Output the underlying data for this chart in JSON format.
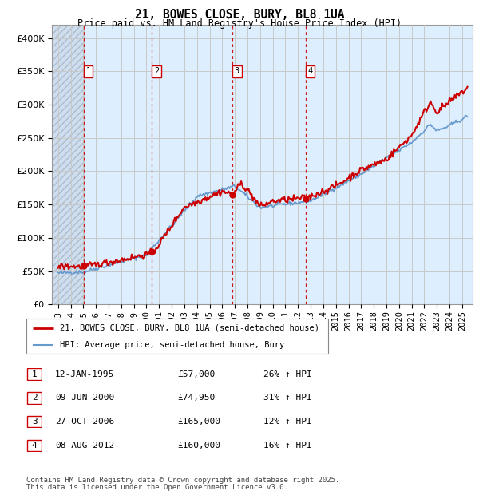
{
  "title": "21, BOWES CLOSE, BURY, BL8 1UA",
  "subtitle": "Price paid vs. HM Land Registry's House Price Index (HPI)",
  "legend_line1": "21, BOWES CLOSE, BURY, BL8 1UA (semi-detached house)",
  "legend_line2": "HPI: Average price, semi-detached house, Bury",
  "footer1": "Contains HM Land Registry data © Crown copyright and database right 2025.",
  "footer2": "This data is licensed under the Open Government Licence v3.0.",
  "transactions": [
    {
      "num": 1,
      "date_label": "12-JAN-1995",
      "price": 57000,
      "hpi_pct": "26% ↑ HPI",
      "date_x": 1995.04
    },
    {
      "num": 2,
      "date_label": "09-JUN-2000",
      "price": 74950,
      "hpi_pct": "31% ↑ HPI",
      "date_x": 2000.44
    },
    {
      "num": 3,
      "date_label": "27-OCT-2006",
      "price": 165000,
      "hpi_pct": "12% ↑ HPI",
      "date_x": 2006.82
    },
    {
      "num": 4,
      "date_label": "08-AUG-2012",
      "price": 160000,
      "hpi_pct": "16% ↑ HPI",
      "date_x": 2012.6
    }
  ],
  "hpi_color": "#6699cc",
  "price_color": "#cc0000",
  "hatch_color": "#c8d8e8",
  "bg_color": "#ddeeff",
  "grid_color": "#cccccc",
  "xlim": [
    1992.5,
    2025.8
  ],
  "ylim": [
    0,
    420000
  ],
  "yticks": [
    0,
    50000,
    100000,
    150000,
    200000,
    250000,
    300000,
    350000,
    400000
  ],
  "xticks": [
    1993,
    1994,
    1995,
    1996,
    1997,
    1998,
    1999,
    2000,
    2001,
    2002,
    2003,
    2004,
    2005,
    2006,
    2007,
    2008,
    2009,
    2010,
    2011,
    2012,
    2013,
    2014,
    2015,
    2016,
    2017,
    2018,
    2019,
    2020,
    2021,
    2022,
    2023,
    2024,
    2025
  ]
}
